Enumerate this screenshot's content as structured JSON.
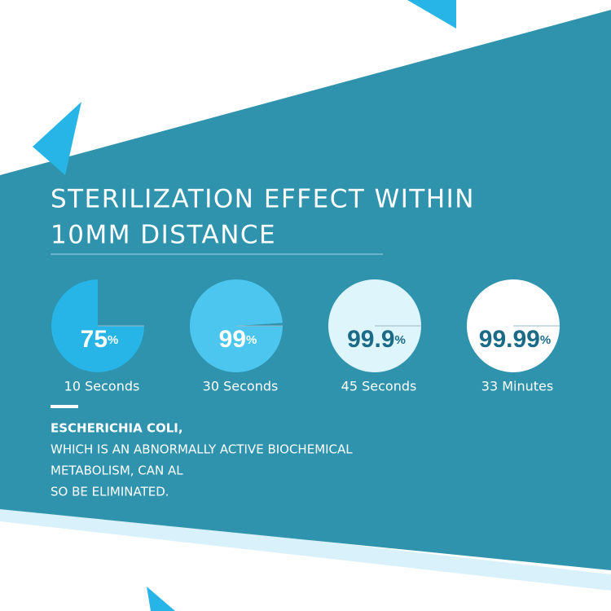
{
  "header": {
    "title_lines": [
      "STERILIZATION EFFECT WITHIN",
      "10MM DISTANCE"
    ]
  },
  "stats": [
    {
      "value": 75,
      "unit": "%",
      "label": "10 Seconds",
      "color": "#27b4e6",
      "text_color": "#ffffff"
    },
    {
      "value": 99,
      "unit": "%",
      "label": "30 Seconds",
      "color": "#4cc6ef",
      "text_color": "#ffffff"
    },
    {
      "value": 99.9,
      "unit": "%",
      "label": "45 Seconds",
      "color": "#dff5fc",
      "text_color": "#1a6a88"
    },
    {
      "value": 99.99,
      "unit": "%",
      "label": "33 Minutes",
      "color": "#ffffff",
      "text_color": "#1a6a88"
    }
  ],
  "note": {
    "heading": "ESCHERICHIA COLI,",
    "lines": [
      "WHICH IS AN ABNORMALLY ACTIVE BIOCHEMICAL",
      "METABOLISM, CAN AL",
      "SO BE ELIMINATED."
    ]
  }
}
